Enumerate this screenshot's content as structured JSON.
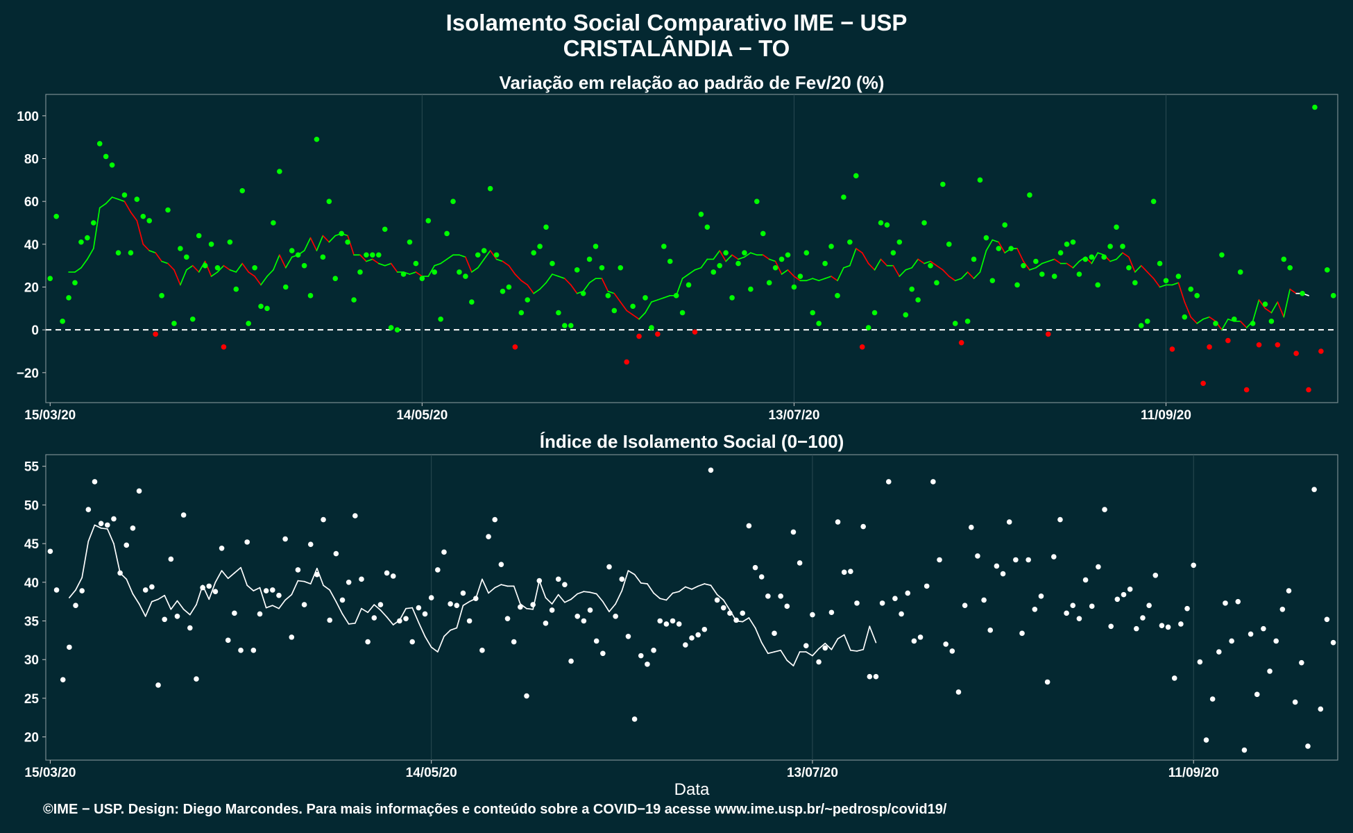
{
  "header": {
    "title_line1": "Isolamento Social Comparativo IME − USP",
    "title_line2": "CRISTALÂNDIA − TO"
  },
  "footer": "©IME − USP. Design: Diego Marcondes. Para mais informações e conteúdo sobre a COVID−19 acesse www.ime.usp.br/~pedrosp/covid19/",
  "colors": {
    "background": "#042831",
    "positive": "#00ff00",
    "negative": "#ff0000",
    "index": "#ffffff"
  },
  "chart_data": [
    {
      "type": "scatter",
      "title": "Variação em relação ao padrão de Fev/20 (%)",
      "xlabel": "",
      "ylabel": "",
      "x_ticks": [
        "15/03/20",
        "14/05/20",
        "13/07/20",
        "11/09/20"
      ],
      "y_ticks": [
        -20,
        0,
        20,
        40,
        60,
        80,
        100
      ],
      "ylim": [
        -34,
        110
      ],
      "reference_line": 0,
      "start_date": "15/03/20",
      "values": [
        24,
        53,
        4,
        15,
        22,
        41,
        43,
        50,
        87,
        81,
        77,
        36,
        63,
        36,
        61,
        53,
        51,
        -2,
        16,
        56,
        3,
        38,
        34,
        5,
        44,
        30,
        40,
        29,
        -8,
        41,
        19,
        65,
        3,
        29,
        11,
        10,
        50,
        74,
        20,
        37,
        35,
        30,
        16,
        89,
        34,
        60,
        24,
        45,
        41,
        14,
        27,
        35,
        35,
        35,
        47,
        1,
        0,
        26,
        41,
        31,
        24,
        51,
        27,
        5,
        45,
        60,
        27,
        25,
        13,
        35,
        37,
        66,
        35,
        18,
        20,
        -8,
        8,
        14,
        36,
        39,
        48,
        31,
        8,
        2,
        2,
        28,
        17,
        33,
        39,
        29,
        16,
        9,
        29,
        -15,
        11,
        -3,
        15,
        1,
        -2,
        39,
        32,
        16,
        8,
        21,
        -1,
        54,
        48,
        27,
        30,
        36,
        15,
        31,
        36,
        19,
        60,
        45,
        22,
        29,
        33,
        35,
        20,
        25,
        36,
        8,
        3,
        31,
        39,
        16,
        62,
        41,
        72,
        -8,
        1,
        8,
        50,
        49,
        36,
        41,
        7,
        19,
        14,
        50,
        30,
        22,
        68,
        40,
        3,
        -6,
        4,
        33,
        70,
        43,
        23,
        38,
        49,
        38,
        21,
        30,
        63,
        32,
        26,
        -2,
        25,
        36,
        40,
        41,
        26,
        33,
        34,
        21,
        34,
        39,
        48,
        39,
        29,
        22,
        2,
        4,
        60,
        31,
        23,
        -9,
        25,
        6,
        19,
        16,
        -25,
        -8,
        3,
        35,
        -5,
        5,
        27,
        -28,
        3,
        -7,
        12,
        4,
        -7,
        33,
        29,
        -11,
        17,
        -28,
        104,
        -10,
        28,
        16
      ],
      "moving_average": [
        27,
        27,
        29,
        33,
        38,
        57,
        59,
        62,
        61,
        60,
        55,
        51,
        40,
        37,
        36,
        32,
        31,
        28,
        21,
        28,
        30,
        27,
        32,
        25,
        27,
        30,
        28,
        27,
        31,
        27,
        25,
        21,
        25,
        28,
        35,
        29,
        34,
        35,
        37,
        43,
        37,
        44,
        41,
        44,
        45,
        44,
        35,
        35,
        32,
        33,
        31,
        30,
        31,
        27,
        27,
        26,
        27,
        25,
        25,
        30,
        31,
        33,
        35,
        35,
        34,
        27,
        29,
        33,
        37,
        33,
        32,
        30,
        26,
        23,
        21,
        17,
        19,
        22,
        26,
        25,
        24,
        21,
        17,
        18,
        22,
        24,
        24,
        18,
        17,
        13,
        9,
        7,
        5,
        8,
        13,
        14,
        15,
        16,
        16,
        24,
        26,
        28,
        29,
        33,
        33,
        37,
        32,
        35,
        33,
        34,
        36,
        35,
        35,
        33,
        32,
        26,
        28,
        25,
        23,
        23,
        24,
        23,
        24,
        25,
        23,
        29,
        30,
        38,
        36,
        31,
        28,
        33,
        30,
        30,
        25,
        28,
        29,
        33,
        31,
        32,
        30,
        28,
        25,
        23,
        24,
        27,
        24,
        27,
        37,
        42,
        41,
        36,
        38,
        38,
        32,
        28,
        29,
        31,
        32,
        33,
        31,
        31,
        29,
        32,
        34,
        31,
        36,
        35,
        32,
        33,
        36,
        34,
        27,
        30,
        27,
        24,
        20,
        21,
        21,
        22,
        13,
        6,
        3,
        5,
        6,
        4,
        0,
        5,
        4,
        4,
        1,
        4,
        14,
        10,
        8,
        13,
        6,
        19,
        17,
        17,
        16
      ],
      "series": [
        {
          "name": "",
          "values": []
        }
      ]
    },
    {
      "type": "scatter",
      "title": "Índice de Isolamento Social (0−100)",
      "xlabel": "Data",
      "ylabel": "",
      "x_ticks": [
        "15/03/20",
        "14/05/20",
        "13/07/20",
        "11/09/20"
      ],
      "y_ticks": [
        20,
        25,
        30,
        35,
        40,
        45,
        50,
        55
      ],
      "ylim": [
        17,
        56.5
      ],
      "start_date": "15/03/20",
      "values": [
        44,
        39,
        27.4,
        31.6,
        37,
        38.9,
        49.4,
        53,
        47.6,
        47.4,
        48.2,
        41.2,
        44.8,
        47,
        51.8,
        39,
        39.4,
        26.7,
        35.2,
        43,
        35.6,
        48.7,
        34.1,
        27.5,
        39.3,
        39.5,
        38.8,
        44.4,
        32.5,
        36,
        31.2,
        45.2,
        31.2,
        35.9,
        38.9,
        39,
        38.3,
        45.6,
        32.9,
        41.6,
        37.1,
        44.9,
        41,
        48.1,
        35.1,
        43.7,
        37.7,
        40,
        48.6,
        40.4,
        32.3,
        35.4,
        37.1,
        41.2,
        40.8,
        35,
        35.3,
        32.3,
        36.7,
        35.9,
        38,
        41.6,
        43.9,
        37.2,
        37,
        38.6,
        35,
        37.9,
        31.2,
        45.9,
        48.1,
        42.3,
        35.3,
        32.3,
        36.8,
        25.3,
        37.1,
        40.2,
        34.7,
        36.4,
        40.4,
        39.7,
        29.8,
        35.6,
        35,
        36.4,
        32.4,
        30.8,
        42,
        35.6,
        40.4,
        33,
        22.3,
        30.5,
        29.4,
        31.2,
        35,
        34.6,
        35,
        34.6,
        31.9,
        32.8,
        33.2,
        33.9,
        54.5,
        37.7,
        36.7,
        36,
        35.1,
        36,
        47.3,
        41.9,
        40.7,
        38.2,
        33.4,
        38.2,
        36.9,
        46.5,
        42.5,
        31.8,
        35.8,
        29.7,
        31.5,
        36.1,
        47.8,
        41.3,
        41.4,
        37.3,
        47.2,
        27.8,
        27.8,
        37.3,
        53,
        37.9,
        35.9,
        38.6,
        32.4,
        32.9,
        39.5,
        53,
        42.9,
        32,
        31.1,
        25.8,
        37,
        47.1,
        43.4,
        37.7,
        33.8,
        42.1,
        41.1,
        47.8,
        42.9,
        33.4,
        42.9,
        36.5,
        38.2,
        27.1,
        43.3,
        48.1,
        36,
        37,
        35.3,
        40.3,
        36.9,
        42,
        49.4,
        34.3,
        37.8,
        38.4,
        39.1,
        34,
        35.4,
        37,
        40.9,
        34.4,
        34.2,
        27.6,
        34.6,
        36.6,
        42.2,
        29.7,
        19.6,
        24.9,
        31,
        37.3,
        32.4,
        37.5,
        18.3,
        33.3,
        25.5,
        34,
        28.5,
        32.4,
        36.5,
        38.9,
        24.5,
        29.6,
        18.8,
        52,
        23.6,
        35.2,
        32.2
      ],
      "moving_average": [
        38,
        39,
        40.6,
        45.3,
        47.4,
        47,
        46.9,
        45,
        41.2,
        40.4,
        38.5,
        37.2,
        35.6,
        37.5,
        37.8,
        38.3,
        36.5,
        37.6,
        36.5,
        35.8,
        37.1,
        39.6,
        37.8,
        40,
        41.5,
        40.5,
        41.2,
        41.9,
        39.6,
        38.9,
        39.3,
        36.7,
        37,
        36.6,
        37.7,
        38.4,
        40.2,
        40.1,
        39.8,
        41.8,
        39.6,
        39,
        37.5,
        35.9,
        34.6,
        34.7,
        36.6,
        36.1,
        37.1,
        36.4,
        35.5,
        34.5,
        35.1,
        36.6,
        36.7,
        34.8,
        33,
        31.6,
        31,
        33,
        33.8,
        34.1,
        37,
        37.5,
        37.9,
        40.4,
        38.6,
        39.3,
        39.7,
        39.5,
        39.5,
        37.2,
        36.6,
        36.5,
        40.2,
        38,
        37.2,
        38.4,
        37.4,
        37.8,
        38.5,
        38.8,
        38.7,
        38.5,
        37.5,
        36.2,
        37.2,
        38.9,
        41.5,
        41,
        39.9,
        39.8,
        38.6,
        37.9,
        37.7,
        38.6,
        38.8,
        39.4,
        39.1,
        39.5,
        39.8,
        39.6,
        38.4,
        37.7,
        36.4,
        35,
        34.9,
        35.4,
        34.1,
        32.2,
        30.8,
        31,
        31.2,
        29.9,
        29.2,
        31,
        31,
        30.5,
        31.4,
        32.1,
        31.3,
        32.7,
        33.2,
        31.2,
        31.1,
        31.3,
        34.3,
        32.2
      ],
      "series": [
        {
          "name": "",
          "values": []
        }
      ]
    }
  ]
}
